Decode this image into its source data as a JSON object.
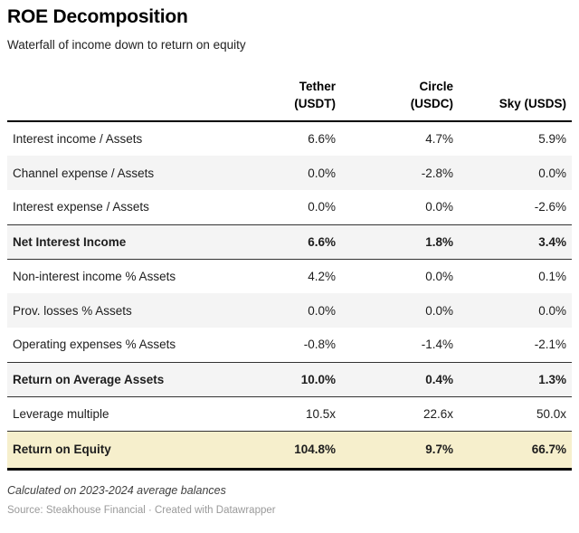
{
  "chart_data": {
    "type": "table",
    "title": "ROE Decomposition",
    "subtitle": "Waterfall of income down to return on equity",
    "columns": [
      {
        "lines": [
          "Tether",
          "(USDT)"
        ]
      },
      {
        "lines": [
          "Circle",
          "(USDC)"
        ]
      },
      {
        "lines": [
          "",
          "Sky (USDS)"
        ]
      }
    ],
    "rows": [
      {
        "label": "Interest income / Assets",
        "values": [
          "6.6%",
          "4.7%",
          "5.9%"
        ],
        "style": "plain"
      },
      {
        "label": "Channel expense / Assets",
        "values": [
          "0.0%",
          "-2.8%",
          "0.0%"
        ],
        "style": "striped"
      },
      {
        "label": "Interest expense / Assets",
        "values": [
          "0.0%",
          "0.0%",
          "-2.6%"
        ],
        "style": "plain"
      },
      {
        "label": "Net Interest Income",
        "values": [
          "6.6%",
          "1.8%",
          "3.4%"
        ],
        "style": "subtotal"
      },
      {
        "label": "Non-interest income % Assets",
        "values": [
          "4.2%",
          "0.0%",
          "0.1%"
        ],
        "style": "plain"
      },
      {
        "label": "Prov. losses % Assets",
        "values": [
          "0.0%",
          "0.0%",
          "0.0%"
        ],
        "style": "striped"
      },
      {
        "label": "Operating expenses % Assets",
        "values": [
          "-0.8%",
          "-1.4%",
          "-2.1%"
        ],
        "style": "plain"
      },
      {
        "label": "Return on Average Assets",
        "values": [
          "10.0%",
          "0.4%",
          "1.3%"
        ],
        "style": "subtotal"
      },
      {
        "label": "Leverage multiple",
        "values": [
          "10.5x",
          "22.6x",
          "50.0x"
        ],
        "style": "plain"
      },
      {
        "label": "Return on Equity",
        "values": [
          "104.8%",
          "9.7%",
          "66.7%"
        ],
        "style": "highlight"
      }
    ]
  },
  "footer": {
    "footnote": "Calculated on 2023-2024 average balances",
    "source": "Source: Steakhouse Financial · Created with Datawrapper"
  },
  "colors": {
    "stripe_bg": "#f4f4f4",
    "highlight_row_bg": "#f6efcc",
    "subtotal_border": "#333333",
    "header_rule": "#000000",
    "bottom_rule": "#000000",
    "source_text": "#9a9a9a"
  }
}
